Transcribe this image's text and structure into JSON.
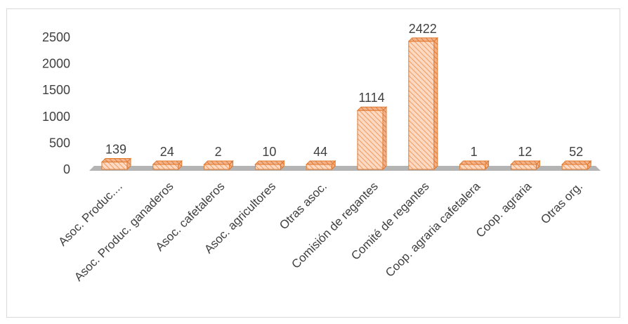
{
  "chart_data": {
    "type": "bar",
    "style": "3d-column",
    "categories": [
      "Asoc. Produc....",
      "Asoc. Produc. ganaderos",
      "Asoc. cafetaleros",
      "Asoc. agricultores",
      "Otras asoc.",
      "Comisión de regantes",
      "Comité de regantes",
      "Coop. agraria cafetalera",
      "Coop. agraria",
      "Otras org."
    ],
    "values": [
      139,
      24,
      2,
      10,
      44,
      1114,
      2422,
      1,
      12,
      52
    ],
    "data_labels": [
      "139",
      "24",
      "2",
      "10",
      "44",
      "1114",
      "2422",
      "1",
      "12",
      "52"
    ],
    "yticks": [
      "0",
      "500",
      "1000",
      "1500",
      "2000",
      "2500"
    ],
    "ylim": [
      0,
      2500
    ],
    "title": "",
    "xlabel": "",
    "ylabel": "",
    "grid": false,
    "legend": "none",
    "colors": {
      "bar_fill": "#fbd9c2",
      "bar_hatch": "#f29a5e",
      "bar_border": "#e0782c",
      "floor": "#b4b4b4",
      "text": "#404040"
    }
  }
}
